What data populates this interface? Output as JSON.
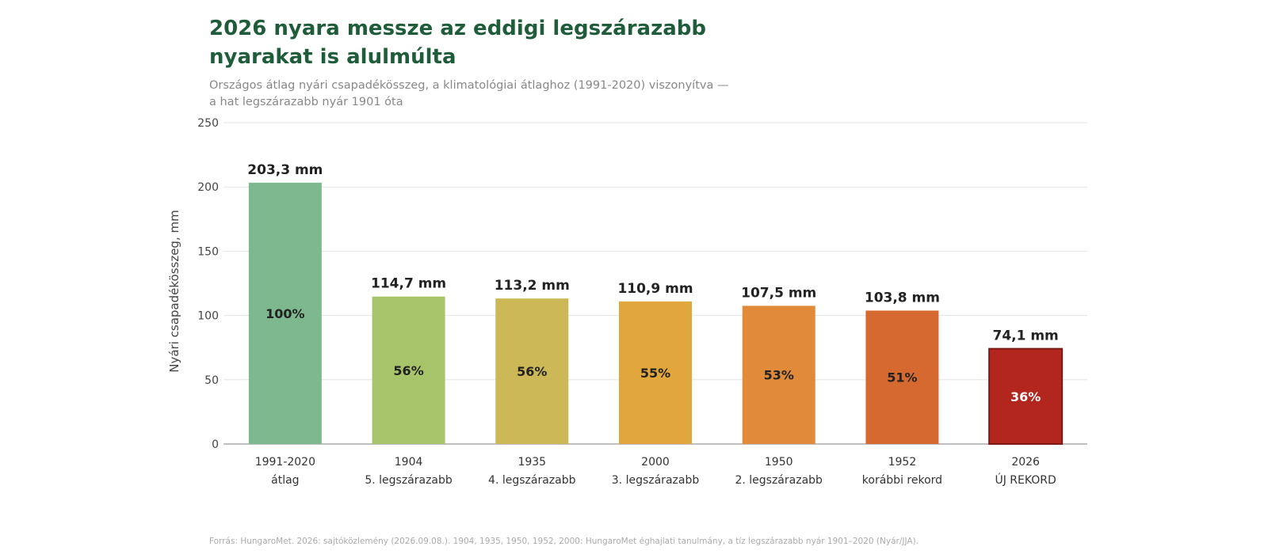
{
  "header": {
    "title_lines": [
      "2026 nyara messze az eddigi legszárazabb",
      "nyarakat is alulmúlta"
    ],
    "subtitle_lines": [
      "Országos átlag nyári csapadékösszeg, a klimatológiai átlaghoz (1991-2020) viszonyítva —",
      "a hat legszárazabb nyár 1901 óta"
    ]
  },
  "footer": {
    "source": "Forrás: HungaroMet. 2026: sajtóközlemény (2026.09.08.). 1904, 1935, 1950, 1952, 2000: HungaroMet éghajlati tanulmány, a tíz legszárazabb nyár 1901–2020 (Nyár/JJA)."
  },
  "chart_data": {
    "type": "bar",
    "title": "2026 nyara messze az eddigi legszárazabb nyarakat is alulmúlta",
    "ylabel": "Nyári csapadékösszeg, mm",
    "ylim": [
      0,
      250
    ],
    "yticks": [
      0,
      50,
      100,
      150,
      200,
      250
    ],
    "grid": true,
    "categories": [
      {
        "year": "1991-2020",
        "desc": "átlag"
      },
      {
        "year": "1904",
        "desc": "5. legszárazabb"
      },
      {
        "year": "1935",
        "desc": "4. legszárazabb"
      },
      {
        "year": "2000",
        "desc": "3. legszárazabb"
      },
      {
        "year": "1950",
        "desc": "2. legszárazabb"
      },
      {
        "year": "1952",
        "desc": "korábbi rekord"
      },
      {
        "year": "2026",
        "desc": "ÚJ REKORD"
      }
    ],
    "values": [
      203.3,
      114.7,
      113.2,
      110.9,
      107.5,
      103.8,
      74.1
    ],
    "value_labels": [
      "203,3 mm",
      "114,7 mm",
      "113,2 mm",
      "110,9 mm",
      "107,5 mm",
      "103,8 mm",
      "74,1 mm"
    ],
    "percent_labels": [
      "100%",
      "56%",
      "56%",
      "55%",
      "53%",
      "51%",
      "36%"
    ],
    "colors": [
      "#7db88f",
      "#a8c46a",
      "#ccb857",
      "#e2a73c",
      "#e08a3a",
      "#d66930",
      "#b3261e"
    ],
    "highlight_index": 6,
    "highlight_border": "#7a1a14"
  }
}
